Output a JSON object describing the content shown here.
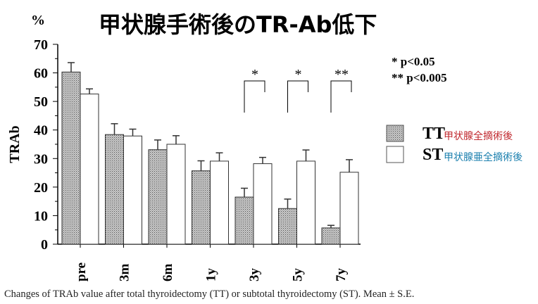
{
  "chart_data": {
    "type": "bar",
    "title": "甲状腺手術後のTR-Ab低下",
    "unit_label": "%",
    "ylabel": "TRAb",
    "ylim": [
      0,
      70
    ],
    "yticks": [
      0,
      10,
      20,
      30,
      40,
      50,
      60,
      70
    ],
    "categories": [
      "pre",
      "3m",
      "6m",
      "1y",
      "3y",
      "5y",
      "7y"
    ],
    "series": [
      {
        "name": "TT",
        "name_jp": "甲状腺全摘術後",
        "color": "#a8a8a8",
        "pattern": "dotted",
        "values": [
          60.3,
          38.4,
          33.1,
          25.7,
          16.5,
          12.5,
          5.7
        ],
        "se": [
          3.3,
          3.8,
          3.4,
          3.5,
          3.1,
          3.3,
          0.9
        ]
      },
      {
        "name": "ST",
        "name_jp": "甲状腺亜全摘術後",
        "color": "#ffffff",
        "values": [
          52.6,
          37.9,
          35.0,
          29.1,
          28.2,
          29.1,
          25.2
        ],
        "se": [
          1.8,
          2.4,
          3.0,
          2.9,
          2.2,
          3.9,
          4.4
        ]
      }
    ],
    "significance": [
      {
        "category": "3y",
        "mark": "*"
      },
      {
        "category": "5y",
        "mark": "*"
      },
      {
        "category": "7y",
        "mark": "**"
      }
    ],
    "significance_legend": [
      "*  p<0.05",
      "** p<0.005"
    ],
    "legend_colors": {
      "TT": "#c0272d",
      "ST": "#1a7fae"
    },
    "legend_placement": "right",
    "grid": false
  },
  "caption": "Changes of TRAb value after total thyroidectomy (TT) or subtotal thyroidectomy (ST).  Mean ± S.E."
}
